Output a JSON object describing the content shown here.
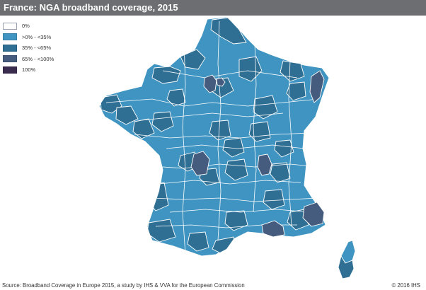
{
  "title": "France: NGA broadband coverage, 2015",
  "legend": [
    {
      "label": "0%",
      "color": "#ffffff"
    },
    {
      "label": ">0% - <35%",
      "color": "#3f94c1"
    },
    {
      "label": "35% - <65%",
      "color": "#2f6f93"
    },
    {
      "label": "65% - <100%",
      "color": "#465c7e"
    },
    {
      "label": "100%",
      "color": "#3a2c4f"
    }
  ],
  "source": "Source: Broadband Coverage in Europe 2015, a study by IHS & VVA for the European Commission",
  "copyright": "© 2016 IHS"
}
